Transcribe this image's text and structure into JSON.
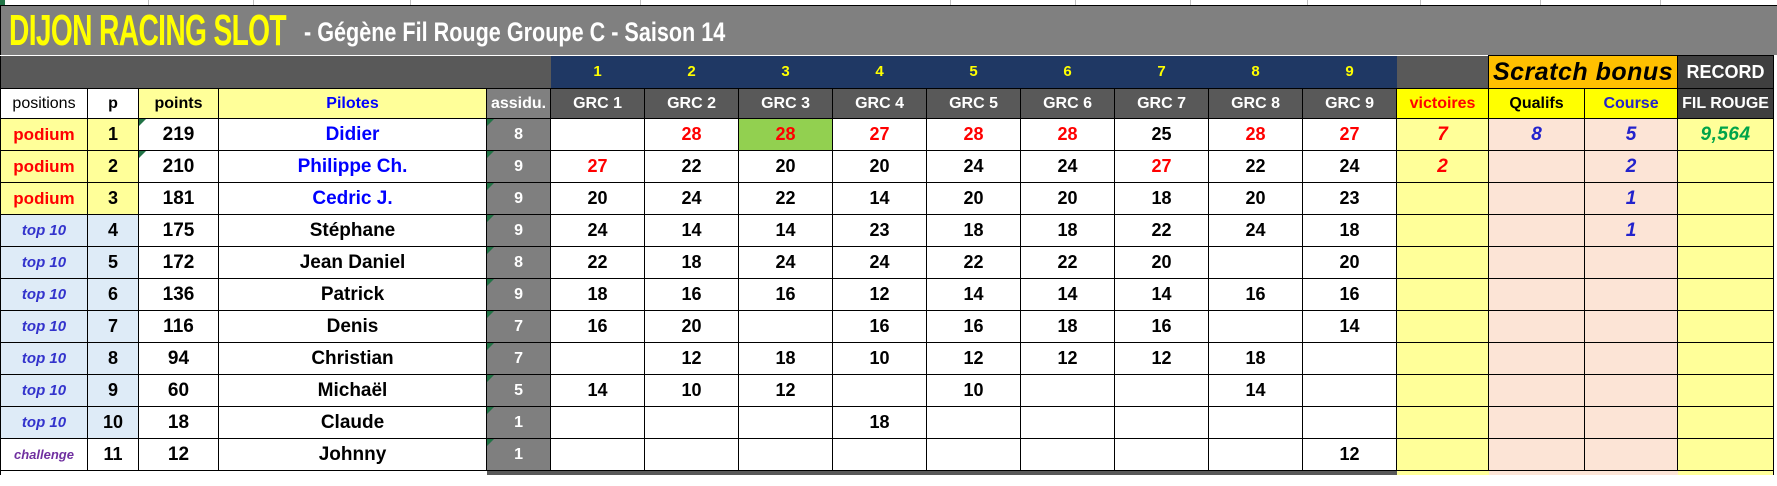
{
  "banner": {
    "title": "DIJON RACING SLOT",
    "subtitle": "-  Gégène Fil Rouge Groupe C  -  Saison 14"
  },
  "race_row": {
    "numbers": [
      "1",
      "2",
      "3",
      "4",
      "5",
      "6",
      "7",
      "8",
      "9"
    ],
    "scratch_bonus_label": "Scratch bonus",
    "record_label": "RECORD"
  },
  "columns": {
    "positions": "positions",
    "p": "p",
    "points": "points",
    "pilotes": "Pilotes",
    "assiduity": "assidu.",
    "grc": [
      "GRC 1",
      "GRC 2",
      "GRC 3",
      "GRC 4",
      "GRC 5",
      "GRC 6",
      "GRC 7",
      "GRC 8",
      "GRC 9"
    ],
    "victoires": "victoires",
    "qualifs": "Qualifs",
    "course": "Course",
    "fil_rouge": "FIL ROUGE"
  },
  "rows": [
    {
      "category": "podium",
      "type": "podium",
      "rank": "1",
      "points": "219",
      "points_note": true,
      "pilot": "Didier",
      "assiduity": "8",
      "assiduity_note": true,
      "grc": [
        "",
        "28",
        "28",
        "27",
        "28",
        "28",
        "25",
        "28",
        "27"
      ],
      "grc_red": [
        1,
        2,
        3,
        4,
        5,
        7,
        8
      ],
      "grc_highlight": 2,
      "victoires": "7",
      "qualifs": "8",
      "course": "5",
      "fil_rouge": "9,564"
    },
    {
      "category": "podium",
      "type": "podium",
      "rank": "2",
      "points": "210",
      "points_note": true,
      "pilot": "Philippe Ch.",
      "assiduity": "9",
      "assiduity_note": true,
      "grc": [
        "27",
        "22",
        "20",
        "20",
        "24",
        "24",
        "27",
        "22",
        "24"
      ],
      "grc_red": [
        0,
        6
      ],
      "victoires": "2",
      "qualifs": "",
      "course": "2",
      "fil_rouge": ""
    },
    {
      "category": "podium",
      "type": "podium",
      "rank": "3",
      "points": "181",
      "points_note": false,
      "pilot": "Cedric J.",
      "assiduity": "9",
      "assiduity_note": true,
      "grc": [
        "20",
        "24",
        "22",
        "14",
        "20",
        "20",
        "18",
        "20",
        "23"
      ],
      "grc_red": [],
      "victoires": "",
      "qualifs": "",
      "course": "1",
      "fil_rouge": ""
    },
    {
      "category": "top 10",
      "type": "top10",
      "rank": "4",
      "points": "175",
      "points_note": false,
      "pilot": "Stéphane",
      "assiduity": "9",
      "assiduity_note": true,
      "grc": [
        "24",
        "14",
        "14",
        "23",
        "18",
        "18",
        "22",
        "24",
        "18"
      ],
      "grc_red": [],
      "victoires": "",
      "qualifs": "",
      "course": "1",
      "fil_rouge": ""
    },
    {
      "category": "top 10",
      "type": "top10",
      "rank": "5",
      "points": "172",
      "points_note": false,
      "pilot": "Jean Daniel",
      "assiduity": "8",
      "assiduity_note": true,
      "grc": [
        "22",
        "18",
        "24",
        "24",
        "22",
        "22",
        "20",
        "",
        "20"
      ],
      "grc_red": [],
      "victoires": "",
      "qualifs": "",
      "course": "",
      "fil_rouge": ""
    },
    {
      "category": "top 10",
      "type": "top10",
      "rank": "6",
      "points": "136",
      "points_note": false,
      "pilot": "Patrick",
      "assiduity": "9",
      "assiduity_note": true,
      "grc": [
        "18",
        "16",
        "16",
        "12",
        "14",
        "14",
        "14",
        "16",
        "16"
      ],
      "grc_red": [],
      "victoires": "",
      "qualifs": "",
      "course": "",
      "fil_rouge": ""
    },
    {
      "category": "top 10",
      "type": "top10",
      "rank": "7",
      "points": "116",
      "points_note": false,
      "pilot": "Denis",
      "assiduity": "7",
      "assiduity_note": true,
      "grc": [
        "16",
        "20",
        "",
        "16",
        "16",
        "18",
        "16",
        "",
        "14"
      ],
      "grc_red": [],
      "victoires": "",
      "qualifs": "",
      "course": "",
      "fil_rouge": ""
    },
    {
      "category": "top 10",
      "type": "top10",
      "rank": "8",
      "points": "94",
      "points_note": false,
      "pilot": "Christian",
      "assiduity": "7",
      "assiduity_note": true,
      "grc": [
        "",
        "12",
        "18",
        "10",
        "12",
        "12",
        "12",
        "18",
        ""
      ],
      "grc_red": [],
      "victoires": "",
      "qualifs": "",
      "course": "",
      "fil_rouge": ""
    },
    {
      "category": "top 10",
      "type": "top10",
      "rank": "9",
      "points": "60",
      "points_note": false,
      "pilot": "Michaël",
      "assiduity": "5",
      "assiduity_note": true,
      "grc": [
        "14",
        "10",
        "12",
        "",
        "10",
        "",
        "",
        "14",
        ""
      ],
      "grc_red": [],
      "victoires": "",
      "qualifs": "",
      "course": "",
      "fil_rouge": ""
    },
    {
      "category": "top 10",
      "type": "top10",
      "rank": "10",
      "points": "18",
      "points_note": false,
      "pilot": "Claude",
      "assiduity": "1",
      "assiduity_note": true,
      "grc": [
        "",
        "",
        "",
        "18",
        "",
        "",
        "",
        "",
        ""
      ],
      "grc_red": [],
      "victoires": "",
      "qualifs": "",
      "course": "",
      "fil_rouge": ""
    },
    {
      "category": "challenge",
      "type": "challenge",
      "rank": "11",
      "points": "12",
      "points_note": false,
      "pilot": "Johnny",
      "assiduity": "1",
      "assiduity_note": true,
      "grc": [
        "",
        "",
        "",
        "",
        "",
        "",
        "",
        "",
        "12"
      ],
      "grc_red": [],
      "victoires": "",
      "qualifs": "",
      "course": "",
      "fil_rouge": ""
    }
  ],
  "colors": {
    "banner_bg": "#808080",
    "banner_title": "#FFFF00",
    "banner_subtitle": "#FFFFFF",
    "row2_bg": "#595959",
    "race_bg": "#1F3864",
    "race_text": "#FFFF00",
    "scratch_bg": "#FFC000",
    "record_bg": "#3F3F3F",
    "light_yellow": "#FFFF99",
    "bright_yellow": "#FFFF00",
    "podium_bg": "#FFFF99",
    "top10_bg": "#DEEBF7",
    "top10_text": "#3333CC",
    "challenge_text": "#7030A0",
    "assidu_bg": "#7F7F7F",
    "red": "#FF0000",
    "blue_val": "#2222CC",
    "pilot_blue": "#0000FF",
    "green_val": "#00A44A",
    "highlight_green": "#92D050",
    "peach": "#FCE4D6",
    "note_green": "#217346"
  }
}
